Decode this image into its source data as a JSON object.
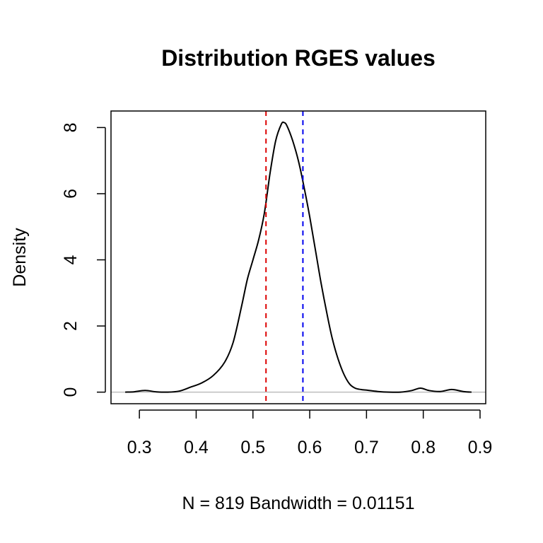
{
  "chart_data": {
    "type": "line",
    "title": "Distribution RGES values",
    "xlabel": "N = 819   Bandwidth = 0.01151",
    "ylabel": "Density",
    "xlim": [
      0.25,
      0.91
    ],
    "ylim": [
      -0.35,
      8.5
    ],
    "x_ticks": [
      0.3,
      0.4,
      0.5,
      0.6,
      0.7,
      0.8,
      0.9
    ],
    "x_tick_labels": [
      "0.3",
      "0.4",
      "0.5",
      "0.6",
      "0.7",
      "0.8",
      "0.9"
    ],
    "y_ticks": [
      0,
      2,
      4,
      6,
      8
    ],
    "y_tick_labels": [
      "0",
      "2",
      "4",
      "6",
      "8"
    ],
    "grid": false,
    "baseline": {
      "y": 0,
      "color": "#bebebe"
    },
    "series": [
      {
        "color": "#000000",
        "x": [
          0.275,
          0.29,
          0.31,
          0.33,
          0.35,
          0.37,
          0.39,
          0.41,
          0.43,
          0.45,
          0.465,
          0.48,
          0.49,
          0.5,
          0.51,
          0.52,
          0.53,
          0.54,
          0.55,
          0.555,
          0.56,
          0.57,
          0.58,
          0.59,
          0.6,
          0.61,
          0.62,
          0.63,
          0.64,
          0.65,
          0.66,
          0.67,
          0.68,
          0.69,
          0.7,
          0.72,
          0.74,
          0.76,
          0.78,
          0.795,
          0.81,
          0.83,
          0.85,
          0.87,
          0.885
        ],
        "y": [
          0.0,
          0.01,
          0.05,
          0.01,
          0.0,
          0.03,
          0.15,
          0.28,
          0.5,
          0.9,
          1.5,
          2.6,
          3.4,
          4.0,
          4.6,
          5.4,
          6.6,
          7.6,
          8.1,
          8.15,
          8.05,
          7.6,
          7.0,
          6.2,
          5.3,
          4.3,
          3.3,
          2.4,
          1.6,
          1.0,
          0.55,
          0.25,
          0.12,
          0.08,
          0.06,
          0.02,
          0.0,
          0.0,
          0.05,
          0.12,
          0.05,
          0.02,
          0.08,
          0.02,
          0.0
        ]
      }
    ],
    "reference_lines": [
      {
        "x": 0.523,
        "color": "#dd0000",
        "style": "dashed"
      },
      {
        "x": 0.588,
        "color": "#0000ee",
        "style": "dashed"
      }
    ]
  }
}
